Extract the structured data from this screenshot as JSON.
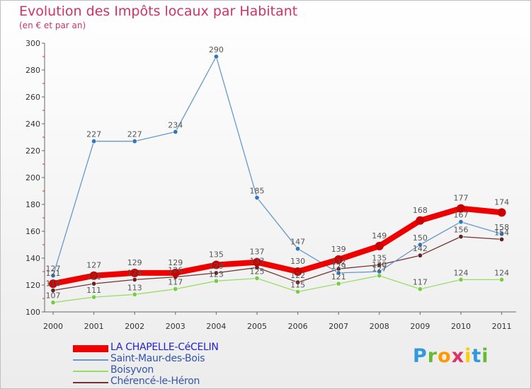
{
  "header": {
    "title": "Evolution des Impôts locaux par Habitant",
    "subtitle": "(en € et par an)"
  },
  "chart_data": {
    "type": "line",
    "title": "Evolution des Impôts locaux par Habitant",
    "subtitle": "(en € et par an)",
    "xlabel": "",
    "ylabel": "",
    "x": [
      "2000",
      "2001",
      "2002",
      "2003",
      "2004",
      "2005",
      "2006",
      "2007",
      "2008",
      "2009",
      "2010",
      "2011"
    ],
    "ylim": [
      100,
      300
    ],
    "yticks": [
      100,
      120,
      140,
      160,
      180,
      200,
      220,
      240,
      260,
      280,
      300
    ],
    "grid": false,
    "legend_position": "bottom-left",
    "series": [
      {
        "name": "LA CHAPELLE-CéCELIN",
        "color": "#ee0000",
        "marker_color": "#cc0000",
        "values": [
          121,
          127,
          129,
          129,
          135,
          137,
          130,
          139,
          149,
          168,
          177,
          174
        ]
      },
      {
        "name": "Saint-Maur-des-Bois",
        "color": "#6699cc",
        "marker_color": "#3377bb",
        "values": [
          127,
          227,
          227,
          234,
          290,
          185,
          147,
          129,
          130,
          150,
          167,
          158
        ]
      },
      {
        "name": "Boisyvon",
        "color": "#99dd66",
        "marker_color": "#77cc44",
        "values": [
          107,
          111,
          113,
          117,
          123,
          125,
          115,
          121,
          127,
          117,
          124,
          124
        ]
      },
      {
        "name": "Chérencé-le-Héron",
        "color": "#773333",
        "marker_color": "#662222",
        "values": [
          116,
          121,
          124,
          126,
          129,
          133,
          122,
          132,
          135,
          142,
          156,
          154
        ]
      }
    ]
  },
  "brand": {
    "name": "Proxiti",
    "letters": [
      "P",
      "r",
      "o",
      "x",
      "i",
      "t",
      "i"
    ],
    "colors": [
      "#3399dd",
      "#66bb33",
      "#ff9900",
      "#dd3366",
      "#ffcc00",
      "#3399dd",
      "#66bb33"
    ]
  }
}
